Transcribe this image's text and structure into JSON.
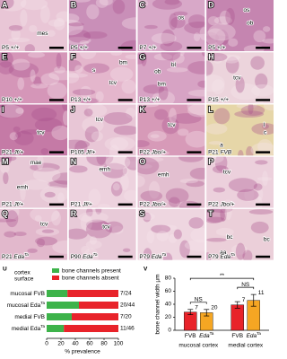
{
  "panels": [
    {
      "letter": "A",
      "stage": "P5",
      "genotype": "+/+",
      "notes": [
        "mes"
      ]
    },
    {
      "letter": "B",
      "stage": "P5",
      "genotype": "+/+",
      "notes": []
    },
    {
      "letter": "C",
      "stage": "P7",
      "genotype": "+/+",
      "notes": [
        "os"
      ]
    },
    {
      "letter": "D",
      "stage": "P5",
      "genotype": "+/+",
      "notes": [
        "os",
        "ob"
      ]
    },
    {
      "letter": "E",
      "stage": "P10",
      "genotype": "+/+",
      "notes": []
    },
    {
      "letter": "F",
      "stage": "P13",
      "genotype": "+/+",
      "notes": [
        "s",
        "bm",
        "tcv"
      ]
    },
    {
      "letter": "G",
      "stage": "P13",
      "genotype": "+/+",
      "notes": [
        "bl",
        "ob",
        "bm"
      ]
    },
    {
      "letter": "H",
      "stage": "P15",
      "genotype": "+/+",
      "notes": [
        "tcv"
      ]
    },
    {
      "letter": "I",
      "stage": "P21",
      "genotype": "Jf/+",
      "notes": [
        "tcv"
      ]
    },
    {
      "letter": "J",
      "stage": "P105",
      "genotype": "Jf/+",
      "notes": [
        "tcv"
      ]
    },
    {
      "letter": "K",
      "stage": "P22",
      "genotype": "Jbo/+",
      "notes": [
        "tcv"
      ]
    },
    {
      "letter": "L",
      "stage": "P21",
      "genotype": "FVB",
      "notes": [
        "l",
        "c",
        "a"
      ]
    },
    {
      "letter": "M",
      "stage": "P21",
      "genotype": "Jf/+",
      "notes": [
        "mae",
        "emh"
      ]
    },
    {
      "letter": "N",
      "stage": "P21",
      "genotype": "Jf/+",
      "notes": [
        "emh"
      ]
    },
    {
      "letter": "O",
      "stage": "P22",
      "genotype": "Jbo/+",
      "notes": [
        "emh"
      ]
    },
    {
      "letter": "P",
      "stage": "P22",
      "genotype": "Jbo/+",
      "notes": [
        "tcv"
      ]
    },
    {
      "letter": "Q",
      "stage": "P21",
      "genotype": "Eda",
      "allele": "Ta",
      "notes": [
        "tcv"
      ]
    },
    {
      "letter": "R",
      "stage": "P90",
      "genotype": "Eda",
      "allele": "Ta",
      "notes": [
        "tcv"
      ]
    },
    {
      "letter": "S",
      "stage": "P79",
      "genotype": "Eda",
      "allele": "Ta",
      "notes": []
    },
    {
      "letter": "T",
      "stage": "P79",
      "genotype": "Eda",
      "allele": "Ta",
      "notes": [
        "bc",
        "bc",
        "aa"
      ]
    }
  ],
  "chart_data": [
    {
      "type": "stacked-hbar",
      "letter": "U",
      "header": [
        "cortex",
        "surface"
      ],
      "categories": [
        "mucosal FVB",
        "mucosal Eda",
        "medial FVB",
        "medial Eda"
      ],
      "category_superscripts": [
        null,
        "Ta",
        null,
        "Ta"
      ],
      "ratio_labels": [
        "7/24",
        "20/44",
        "7/20",
        "11/46"
      ],
      "series": [
        {
          "name": "bone channels present",
          "color": "#3db34a",
          "values": [
            29,
            45,
            35,
            24
          ]
        },
        {
          "name": "bone channels absent",
          "color": "#e8232a",
          "values": [
            71,
            55,
            65,
            76
          ]
        }
      ],
      "xlabel": "% prevalence",
      "xlim": [
        0,
        100
      ],
      "xticks": [
        0,
        20,
        40,
        60,
        80,
        100
      ]
    },
    {
      "type": "errorbar",
      "letter": "V",
      "categories": [
        "mucosal cortex",
        "medial cortex"
      ],
      "series": [
        {
          "name": "FVB",
          "color": "#e8232a",
          "values": [
            28,
            39
          ],
          "errors": [
            4,
            5
          ],
          "n": [
            7,
            7
          ]
        },
        {
          "name": "Eda",
          "superscript": "Ta",
          "color": "#f5a623",
          "values": [
            27,
            46
          ],
          "errors": [
            5,
            9
          ],
          "n": [
            20,
            11
          ]
        }
      ],
      "significance": [
        "NS",
        "NS",
        "**"
      ],
      "ylabel": "bone channel width µm",
      "ylim": [
        0,
        80
      ],
      "yticks": [
        0,
        20,
        40,
        60,
        80
      ]
    }
  ]
}
